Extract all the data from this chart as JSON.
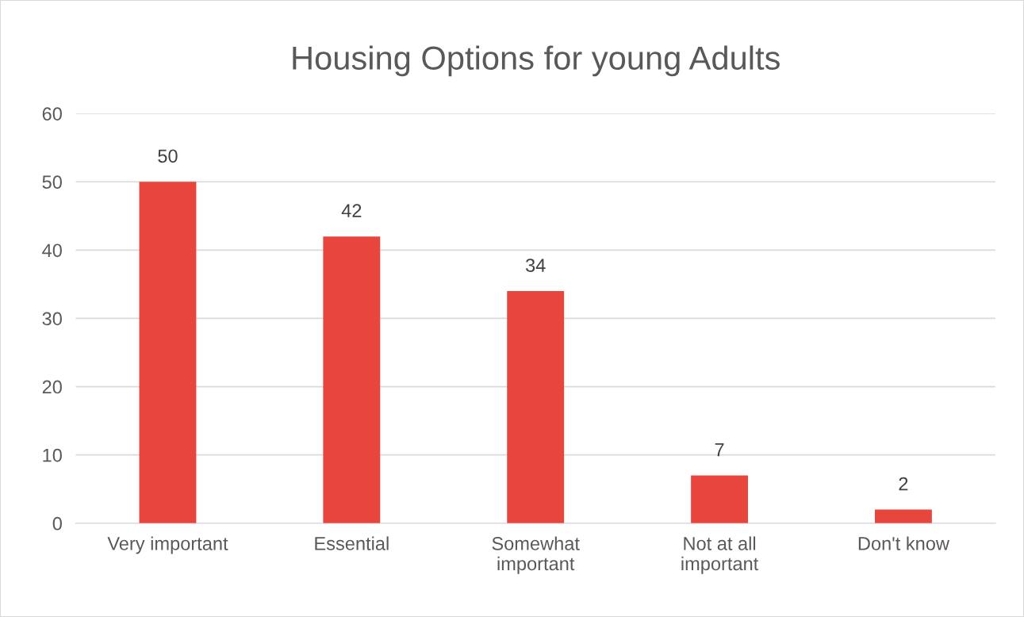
{
  "chart_data": {
    "type": "bar",
    "title": "Housing Options for young Adults",
    "categories": [
      "Very important",
      "Essential",
      "Somewhat\nimportant",
      "Not at all\nimportant",
      "Don't know"
    ],
    "values": [
      50,
      42,
      34,
      7,
      2
    ],
    "color": "#e8453c",
    "ylim": [
      0,
      60
    ],
    "yticks": [
      0,
      10,
      20,
      30,
      40,
      50,
      60
    ],
    "grid": "y",
    "data_labels": true
  }
}
